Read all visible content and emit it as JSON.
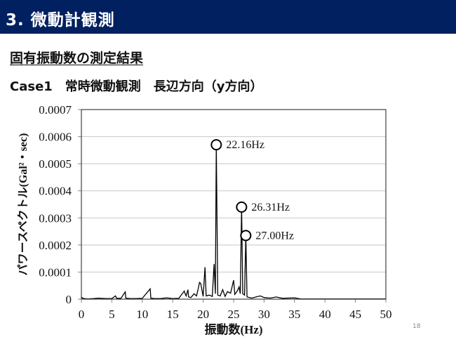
{
  "header": {
    "title": "3. 微動計観測",
    "bg_color": "#002060"
  },
  "section_title": "固有振動数の測定結果",
  "case_title": "Case1　常時微動観測　長辺方向（y方向）",
  "page_number": "18",
  "chart_data": {
    "type": "line",
    "title": "",
    "xlabel": "振動数(Hz)",
    "ylabel": "パワースペクトル(Gal²・sec)",
    "xlim": [
      0,
      50
    ],
    "ylim": [
      0,
      0.0007
    ],
    "x_ticks": [
      "0",
      "5",
      "10",
      "15",
      "20",
      "25",
      "30",
      "35",
      "40",
      "45",
      "50"
    ],
    "y_ticks": [
      "0",
      "0.0001",
      "0.0002",
      "0.0003",
      "0.0004",
      "0.0005",
      "0.0006",
      "0.0007"
    ],
    "grid": "horizontal",
    "legend": "none",
    "series": [
      {
        "name": "パワースペクトル",
        "x": [
          0,
          0.2,
          0.5,
          1,
          2,
          2.8,
          3.2,
          4,
          5,
          5.6,
          5.8,
          6.5,
          7.2,
          7.3,
          8,
          9,
          10,
          11.3,
          11.4,
          12,
          13,
          14,
          15,
          16,
          16.9,
          17.0,
          17.2,
          17.5,
          17.6,
          18,
          18.5,
          18.9,
          19.2,
          19.4,
          19.6,
          20,
          20.3,
          20.5,
          21,
          21.5,
          21.8,
          22.0,
          22.16,
          22.4,
          22.8,
          23.2,
          23.6,
          24,
          24.5,
          25.0,
          25.2,
          25.6,
          25.9,
          26.1,
          26.31,
          26.5,
          26.8,
          27.0,
          27.2,
          28,
          29,
          29.4,
          30,
          31,
          32,
          33,
          35,
          36,
          40,
          45,
          50
        ],
        "values": [
          8e-06,
          4e-06,
          2e-06,
          1e-06,
          2e-06,
          4e-06,
          3e-06,
          2e-06,
          2e-06,
          1.2e-05,
          3e-06,
          3e-06,
          2.7e-05,
          4e-06,
          2e-06,
          2e-06,
          3e-06,
          3.8e-05,
          4e-06,
          2e-06,
          2e-06,
          5e-06,
          2e-06,
          3e-06,
          3e-05,
          2.2e-05,
          1.2e-05,
          3.5e-05,
          8e-06,
          6e-06,
          2e-05,
          1.2e-05,
          4e-05,
          6.2e-05,
          5.8e-05,
          1e-05,
          0.000118,
          1.2e-05,
          1.5e-05,
          1e-05,
          0.00013,
          2e-05,
          0.00057,
          1.5e-05,
          1.2e-05,
          3.5e-05,
          1e-05,
          2.8e-05,
          2.2e-05,
          7e-05,
          1.8e-05,
          3e-05,
          4.5e-05,
          2e-05,
          0.00034,
          2e-05,
          1.5e-05,
          0.000235,
          8e-06,
          4e-06,
          1e-05,
          1.2e-05,
          6e-06,
          4e-06,
          8e-06,
          3e-06,
          5e-06,
          1e-06,
          1e-06,
          1e-06,
          1e-06
        ]
      }
    ],
    "annotations": [
      {
        "label": "22.16Hz",
        "x": 22.16,
        "y": 0.00057
      },
      {
        "label": "26.31Hz",
        "x": 26.31,
        "y": 0.00034
      },
      {
        "label": "27.00Hz",
        "x": 27.0,
        "y": 0.000235
      }
    ]
  }
}
